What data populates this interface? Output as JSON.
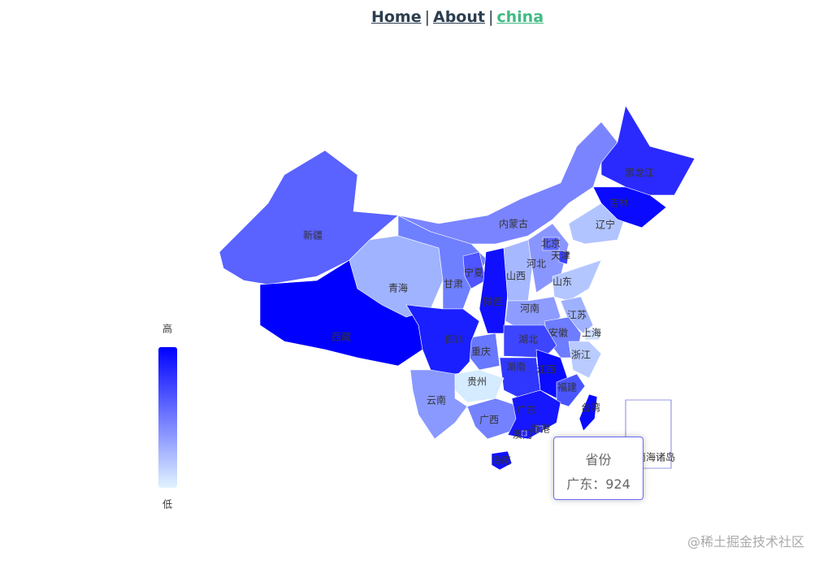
{
  "nav": {
    "links": [
      "Home",
      "About",
      "china"
    ],
    "separator": "|"
  },
  "map": {
    "provinces": [
      {
        "name": "新疆",
        "color": "#5a62ff"
      },
      {
        "name": "西藏",
        "color": "#0000ff"
      },
      {
        "name": "青海",
        "color": "#9fb3ff"
      },
      {
        "name": "甘肃",
        "color": "#6f80ff"
      },
      {
        "name": "内蒙古",
        "color": "#7a84ff"
      },
      {
        "name": "宁夏",
        "color": "#4f55ff"
      },
      {
        "name": "陕西",
        "color": "#1010ff"
      },
      {
        "name": "山西",
        "color": "#a6b8ff"
      },
      {
        "name": "河北",
        "color": "#8a96ff"
      },
      {
        "name": "北京",
        "color": "#5e68ff"
      },
      {
        "name": "天津",
        "color": "#3a40ff"
      },
      {
        "name": "辽宁",
        "color": "#b2c4ff"
      },
      {
        "name": "吉林",
        "color": "#0a0aff"
      },
      {
        "name": "黑龙江",
        "color": "#2a2aff"
      },
      {
        "name": "山东",
        "color": "#b4c6ff"
      },
      {
        "name": "河南",
        "color": "#8e9cff"
      },
      {
        "name": "江苏",
        "color": "#9fb2ff"
      },
      {
        "name": "安徽",
        "color": "#6e7cff"
      },
      {
        "name": "上海",
        "color": "#cfe0ff"
      },
      {
        "name": "浙江",
        "color": "#b9cbff"
      },
      {
        "name": "湖北",
        "color": "#3d45ff"
      },
      {
        "name": "重庆",
        "color": "#6878ff"
      },
      {
        "name": "四川",
        "color": "#1a1fff"
      },
      {
        "name": "湖南",
        "color": "#2f37ff"
      },
      {
        "name": "江西",
        "color": "#0b0bff"
      },
      {
        "name": "福建",
        "color": "#4a55ff"
      },
      {
        "name": "贵州",
        "color": "#d5ebff"
      },
      {
        "name": "云南",
        "color": "#8999ff"
      },
      {
        "name": "广西",
        "color": "#7482ff"
      },
      {
        "name": "广东",
        "color": "#1717ff"
      },
      {
        "name": "香港",
        "color": "#3030ff"
      },
      {
        "name": "澳门",
        "color": "#3030ff"
      },
      {
        "name": "海南",
        "color": "#1010ff"
      },
      {
        "name": "台湾",
        "color": "#0a0aff"
      },
      {
        "name": "南海诸岛",
        "color": "#ffffff"
      }
    ],
    "visual_map": {
      "high": "高",
      "low": "低",
      "colors": [
        "#e0f3ff",
        "#0000ff"
      ]
    },
    "tooltip": {
      "title": "省份",
      "text": "广东：924"
    }
  },
  "watermark": "@稀土掘金技术社区"
}
